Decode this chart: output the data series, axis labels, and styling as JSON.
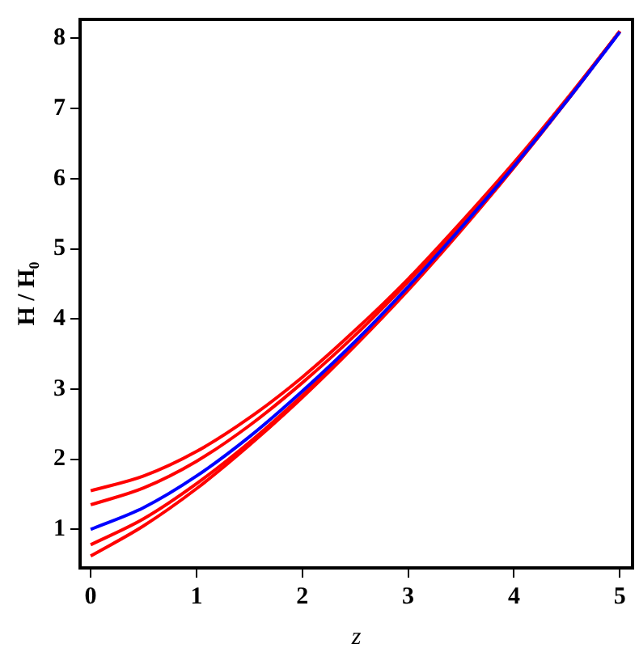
{
  "chart_data": {
    "type": "line",
    "xlabel": "z",
    "ylabel": "H / H₀",
    "x": [
      0,
      0.5,
      1,
      1.5,
      2,
      2.5,
      3,
      3.5,
      4,
      4.5,
      5
    ],
    "xlim": [
      -0.1,
      5.12
    ],
    "ylim": [
      0.45,
      8.27
    ],
    "xticks": [
      0,
      1,
      2,
      3,
      4,
      5
    ],
    "yticks": [
      1,
      2,
      3,
      4,
      5,
      6,
      7,
      8
    ],
    "grid": false,
    "legend": false,
    "marker": "none",
    "line_style": "solid",
    "series": [
      {
        "color": "#ff0000",
        "values": [
          1.55,
          1.76,
          2.11,
          2.59,
          3.17,
          3.84,
          4.57,
          5.38,
          6.23,
          7.14,
          8.1
        ]
      },
      {
        "color": "#ff0000",
        "values": [
          1.35,
          1.59,
          1.97,
          2.48,
          3.09,
          3.77,
          4.53,
          5.34,
          6.21,
          7.13,
          8.1
        ]
      },
      {
        "color": "#ff0000",
        "values": [
          0.78,
          1.15,
          1.65,
          2.24,
          2.91,
          3.64,
          4.43,
          5.28,
          6.17,
          7.11,
          8.1
        ]
      },
      {
        "color": "#ff0000",
        "values": [
          0.62,
          1.05,
          1.58,
          2.2,
          2.88,
          3.62,
          4.41,
          5.26,
          6.16,
          7.11,
          8.1
        ]
      },
      {
        "color": "#0000ff",
        "values": [
          1,
          1.31,
          1.76,
          2.32,
          2.97,
          3.68,
          4.46,
          5.3,
          6.18,
          7.11,
          8.09
        ]
      }
    ]
  }
}
